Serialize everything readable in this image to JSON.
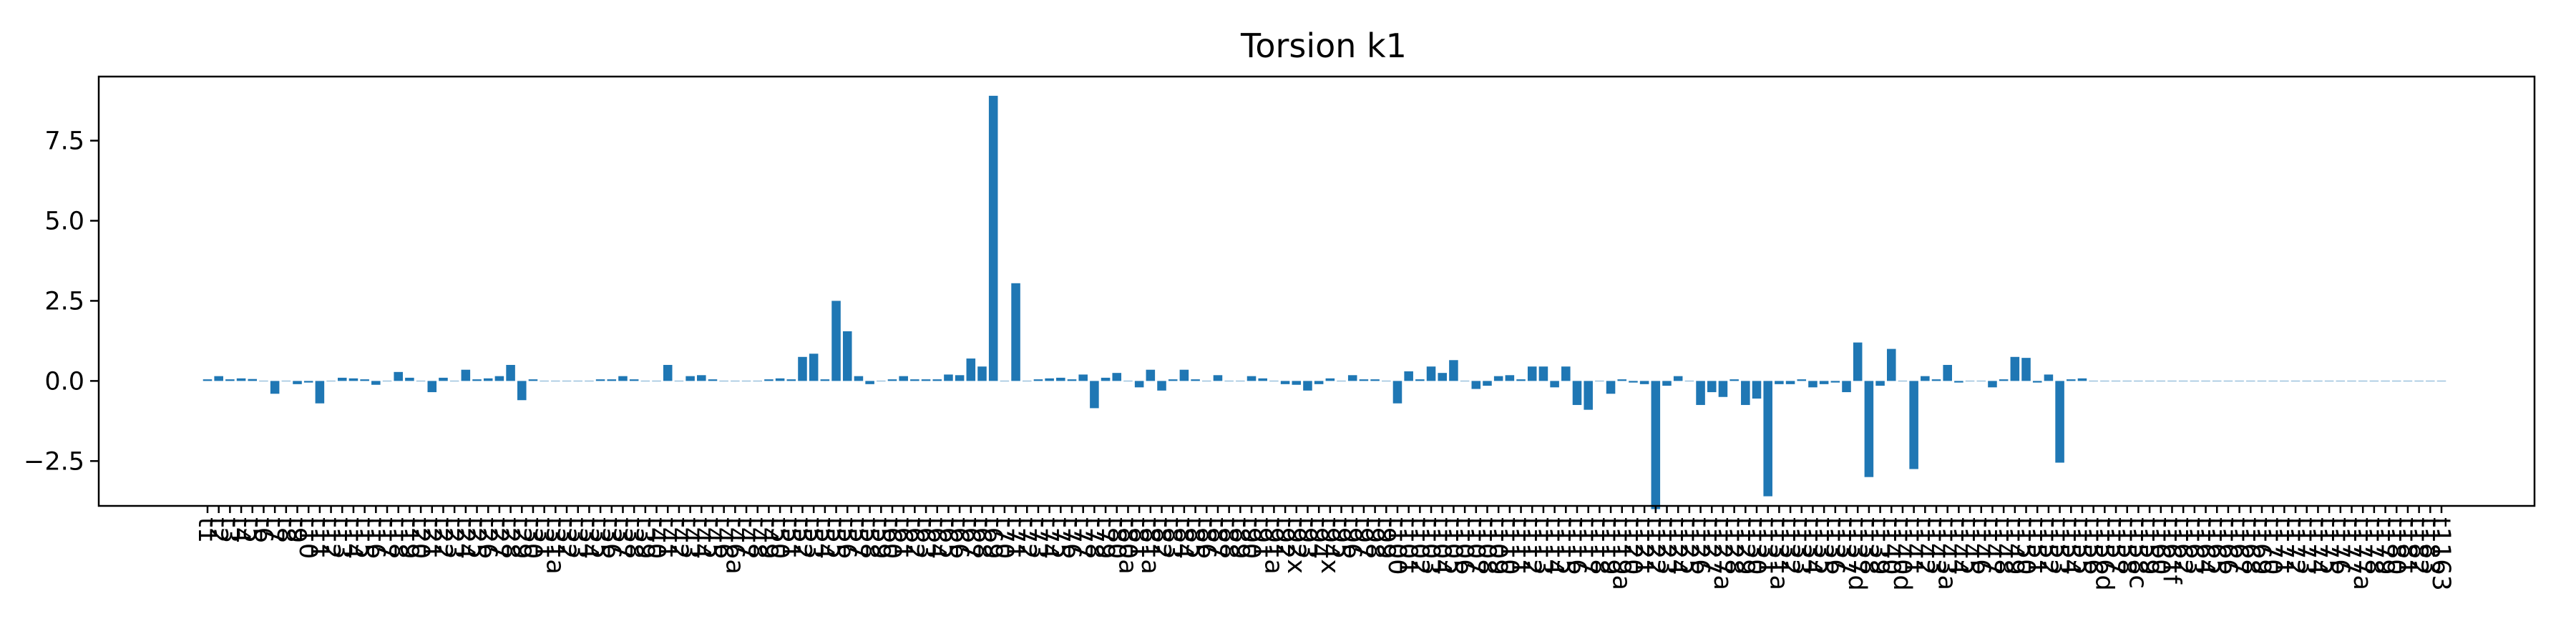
{
  "chart_data": {
    "type": "bar",
    "title": "Torsion k1",
    "xlabel": "",
    "ylabel": "",
    "ylim": [
      -3.9,
      9.5
    ],
    "yticks": [
      -2.5,
      0.0,
      2.5,
      5.0,
      7.5
    ],
    "ytick_labels": [
      "−2.5",
      "0.0",
      "2.5",
      "5.0",
      "7.5"
    ],
    "grid": false,
    "bar_color": "#1f77b4",
    "categories": [
      "t1",
      "t2",
      "t3",
      "t4",
      "t5",
      "t6",
      "t7",
      "t8",
      "t9",
      "t10",
      "t11",
      "t12",
      "t13",
      "t14",
      "t15",
      "t16",
      "t17",
      "t18",
      "t19",
      "t20",
      "t21",
      "t22",
      "t23",
      "t24",
      "t25",
      "t26",
      "t27",
      "t28",
      "t29",
      "t30",
      "t31",
      "t31a",
      "t32",
      "t33",
      "t34",
      "t35",
      "t36",
      "t37",
      "t38",
      "t39",
      "t40",
      "t41",
      "t42",
      "t43",
      "t44",
      "t45",
      "t46",
      "t46a",
      "t47",
      "t48",
      "t49",
      "t50",
      "t51",
      "t52",
      "t53",
      "t54",
      "t55",
      "t56",
      "t57",
      "t58",
      "t59",
      "t60",
      "t61",
      "t62",
      "t63",
      "t64",
      "t65",
      "t66",
      "t67",
      "t68",
      "t69",
      "t70",
      "t71",
      "t72",
      "t73",
      "t74",
      "t75",
      "t76",
      "t77",
      "t78",
      "t79",
      "t80",
      "t80a",
      "t81",
      "t81a",
      "t82",
      "t83",
      "t84",
      "t85",
      "t86",
      "t87",
      "t88",
      "t89",
      "t90",
      "t91",
      "t91a",
      "t92",
      "t92x",
      "t93",
      "t94",
      "t94x",
      "t95",
      "t96",
      "t97",
      "t98",
      "t99",
      "t100",
      "t101",
      "t102",
      "t103",
      "t104",
      "t105",
      "t106",
      "t107",
      "t108",
      "t109",
      "t110",
      "t111",
      "t112",
      "t113",
      "t114",
      "t115",
      "t116",
      "t117",
      "t118",
      "t119",
      "t119a",
      "t120",
      "t121",
      "t122",
      "t123",
      "t124",
      "t125",
      "t126",
      "t127",
      "t127a",
      "t128",
      "t129",
      "t130",
      "t131",
      "t131a",
      "t132",
      "t133",
      "t134",
      "t135",
      "t136",
      "t137",
      "t137d",
      "t138",
      "t139",
      "t140",
      "t140d",
      "t141",
      "t142",
      "t143",
      "t143a",
      "t144",
      "t145",
      "t146",
      "t147",
      "t148",
      "t149",
      "t150",
      "t151",
      "t152",
      "t153",
      "t154",
      "t155",
      "t156",
      "t156d",
      "t157",
      "t158",
      "t158c",
      "t159",
      "t160",
      "t161f",
      "t162",
      "t163",
      "t164",
      "t165",
      "t166",
      "t167",
      "t168",
      "t169",
      "t170",
      "t171",
      "t172",
      "t173",
      "t174",
      "t175",
      "t176",
      "t177",
      "t177a",
      "t178",
      "t179",
      "t180",
      "t181",
      "t182",
      "t183",
      "t1163"
    ],
    "values": [
      0.05,
      0.15,
      0.05,
      0.08,
      0.06,
      0.0,
      -0.4,
      0.0,
      -0.1,
      -0.05,
      -0.7,
      0.0,
      0.1,
      0.08,
      0.05,
      -0.12,
      0.0,
      0.28,
      0.1,
      0.0,
      -0.35,
      0.1,
      0.0,
      0.35,
      0.05,
      0.08,
      0.15,
      0.5,
      -0.6,
      0.05,
      0.0,
      0.0,
      0.0,
      0.0,
      0.0,
      0.05,
      0.05,
      0.15,
      0.05,
      0.0,
      0.0,
      0.5,
      0.0,
      0.15,
      0.18,
      0.05,
      0.0,
      0.0,
      0.0,
      0.0,
      0.05,
      0.08,
      0.05,
      0.75,
      0.85,
      0.05,
      2.5,
      1.55,
      0.15,
      -0.1,
      0.0,
      0.05,
      0.15,
      0.05,
      0.05,
      0.05,
      0.2,
      0.18,
      0.7,
      0.45,
      8.9,
      0.0,
      3.05,
      0.0,
      0.05,
      0.08,
      0.1,
      0.05,
      0.2,
      -0.85,
      0.1,
      0.25,
      0.0,
      -0.2,
      0.35,
      -0.3,
      0.05,
      0.35,
      0.05,
      0.0,
      0.18,
      0.0,
      0.0,
      0.15,
      0.08,
      0.0,
      -0.1,
      -0.12,
      -0.3,
      -0.1,
      0.08,
      0.0,
      0.18,
      0.05,
      0.05,
      0.0,
      -0.7,
      0.3,
      0.05,
      0.45,
      0.25,
      0.65,
      0.0,
      -0.25,
      -0.15,
      0.15,
      0.18,
      0.05,
      0.45,
      0.45,
      -0.2,
      0.45,
      -0.75,
      -0.9,
      0.0,
      -0.4,
      0.05,
      -0.05,
      -0.1,
      -4.0,
      -0.15,
      0.15,
      0.0,
      -0.75,
      -0.35,
      -0.5,
      0.05,
      -0.75,
      -0.55,
      -3.6,
      -0.1,
      -0.1,
      0.05,
      -0.2,
      -0.1,
      -0.05,
      -0.35,
      1.2,
      -3.0,
      -0.15,
      1.0,
      0.0,
      -2.75,
      0.15,
      0.05,
      0.5,
      -0.05,
      0.0,
      0.0,
      -0.2,
      0.05,
      0.75,
      0.72,
      -0.05,
      0.2,
      -2.55,
      0.05,
      0.08,
      0.0,
      0.0,
      0.0,
      0.0,
      0.0,
      0.0,
      0.0,
      0.0,
      0.0,
      0.0,
      0.0,
      0.0,
      0.0,
      0.0,
      0.0,
      0.0,
      0.0,
      0.0,
      0.0,
      0.0,
      0.0,
      0.0,
      0.0,
      0.0,
      0.0,
      0.0,
      0.0,
      0.0,
      0.0,
      0.0,
      0.0,
      0.0
    ]
  }
}
